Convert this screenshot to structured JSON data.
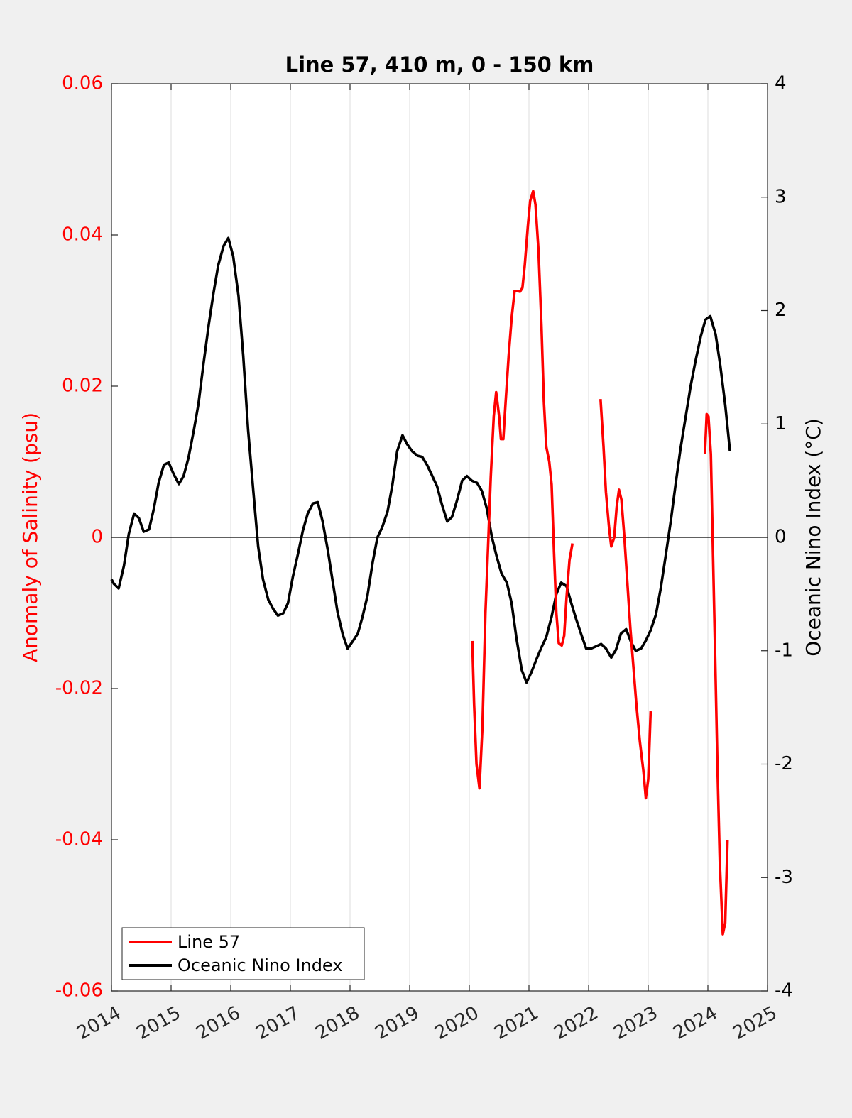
{
  "chart_data": {
    "type": "line",
    "title": "Line 57, 410 m, 0 - 150 km",
    "xlabel": "",
    "xlim": [
      2014,
      2025
    ],
    "x_ticks": [
      2014,
      2015,
      2016,
      2017,
      2018,
      2019,
      2020,
      2021,
      2022,
      2023,
      2024,
      2025
    ],
    "x_tick_labels": [
      "2014",
      "2015",
      "2016",
      "2017",
      "2018",
      "2019",
      "2020",
      "2021",
      "2022",
      "2023",
      "2024",
      "2025"
    ],
    "y_left": {
      "label": "Anomaly of Salinity (psu)",
      "lim": [
        -0.06,
        0.06
      ],
      "ticks": [
        -0.06,
        -0.04,
        -0.02,
        0,
        0.02,
        0.04,
        0.06
      ],
      "tick_labels": [
        "-0.06",
        "-0.04",
        "-0.02",
        "0",
        "0.02",
        "0.04",
        "0.06"
      ],
      "color": "#ff0000"
    },
    "y_right": {
      "label": "Oceanic Nino Index (°C)",
      "lim": [
        -4,
        4
      ],
      "ticks": [
        -4,
        -3,
        -2,
        -1,
        0,
        1,
        2,
        3,
        4
      ],
      "tick_labels": [
        "-4",
        "-3",
        "-2",
        "-1",
        "0",
        "1",
        "2",
        "3",
        "4"
      ],
      "color": "#000000"
    },
    "zero_line": true,
    "grid": "vertical",
    "legend": {
      "location": "bottom-left"
    },
    "series": [
      {
        "name": "Line 57",
        "axis": "left",
        "color": "#ff0000",
        "segments": [
          [
            [
              2020.05,
              -0.0137
            ],
            [
              2020.08,
              -0.022
            ],
            [
              2020.12,
              -0.03
            ],
            [
              2020.17,
              -0.0332
            ],
            [
              2020.22,
              -0.025
            ],
            [
              2020.27,
              -0.01
            ],
            [
              2020.32,
              0.0
            ],
            [
              2020.36,
              0.008
            ],
            [
              2020.41,
              0.016
            ],
            [
              2020.45,
              0.0192
            ],
            [
              2020.5,
              0.016
            ],
            [
              2020.53,
              0.013
            ],
            [
              2020.57,
              0.013
            ],
            [
              2020.61,
              0.018
            ],
            [
              2020.66,
              0.024
            ],
            [
              2020.71,
              0.029
            ],
            [
              2020.76,
              0.0326
            ],
            [
              2020.8,
              0.0326
            ],
            [
              2020.85,
              0.0325
            ],
            [
              2020.89,
              0.033
            ],
            [
              2020.93,
              0.036
            ],
            [
              2020.98,
              0.041
            ],
            [
              2021.02,
              0.0445
            ],
            [
              2021.07,
              0.0458
            ],
            [
              2021.11,
              0.044
            ],
            [
              2021.16,
              0.038
            ],
            [
              2021.21,
              0.028
            ],
            [
              2021.25,
              0.018
            ],
            [
              2021.29,
              0.012
            ],
            [
              2021.34,
              0.01
            ],
            [
              2021.38,
              0.007
            ],
            [
              2021.42,
              -0.002
            ],
            [
              2021.46,
              -0.01
            ],
            [
              2021.5,
              -0.014
            ],
            [
              2021.55,
              -0.0143
            ],
            [
              2021.59,
              -0.013
            ],
            [
              2021.63,
              -0.008
            ],
            [
              2021.68,
              -0.003
            ],
            [
              2021.73,
              -0.0008
            ]
          ],
          [
            [
              2022.2,
              0.0183
            ],
            [
              2022.25,
              0.012
            ],
            [
              2022.29,
              0.006
            ],
            [
              2022.34,
              0.0015
            ],
            [
              2022.38,
              -0.0012
            ],
            [
              2022.43,
              0.0
            ],
            [
              2022.47,
              0.004
            ],
            [
              2022.51,
              0.0063
            ],
            [
              2022.55,
              0.005
            ],
            [
              2022.6,
              0.0
            ],
            [
              2022.65,
              -0.006
            ],
            [
              2022.7,
              -0.012
            ],
            [
              2022.75,
              -0.017
            ],
            [
              2022.8,
              -0.022
            ],
            [
              2022.86,
              -0.027
            ],
            [
              2022.92,
              -0.031
            ],
            [
              2022.96,
              -0.0345
            ],
            [
              2023.0,
              -0.032
            ],
            [
              2023.04,
              -0.023
            ]
          ],
          [
            [
              2023.95,
              0.011
            ],
            [
              2023.98,
              0.0163
            ],
            [
              2024.01,
              0.016
            ],
            [
              2024.05,
              0.011
            ],
            [
              2024.08,
              0.0
            ],
            [
              2024.12,
              -0.015
            ],
            [
              2024.16,
              -0.03
            ],
            [
              2024.2,
              -0.043
            ],
            [
              2024.25,
              -0.0525
            ],
            [
              2024.29,
              -0.051
            ],
            [
              2024.33,
              -0.04
            ]
          ]
        ]
      },
      {
        "name": "Oceanic Nino Index",
        "axis": "right",
        "color": "#000000",
        "segments": [
          [
            [
              2014.0,
              -0.37
            ],
            [
              2014.04,
              -0.41
            ],
            [
              2014.12,
              -0.45
            ],
            [
              2014.21,
              -0.25
            ],
            [
              2014.29,
              0.03
            ],
            [
              2014.38,
              0.21
            ],
            [
              2014.46,
              0.17
            ],
            [
              2014.54,
              0.05
            ],
            [
              2014.63,
              0.07
            ],
            [
              2014.71,
              0.25
            ],
            [
              2014.79,
              0.48
            ],
            [
              2014.88,
              0.64
            ],
            [
              2014.96,
              0.66
            ],
            [
              2015.04,
              0.56
            ],
            [
              2015.13,
              0.47
            ],
            [
              2015.21,
              0.54
            ],
            [
              2015.29,
              0.7
            ],
            [
              2015.38,
              0.94
            ],
            [
              2015.46,
              1.18
            ],
            [
              2015.54,
              1.52
            ],
            [
              2015.63,
              1.87
            ],
            [
              2015.71,
              2.15
            ],
            [
              2015.79,
              2.4
            ],
            [
              2015.88,
              2.57
            ],
            [
              2015.96,
              2.64
            ],
            [
              2016.04,
              2.48
            ],
            [
              2016.13,
              2.13
            ],
            [
              2016.21,
              1.6
            ],
            [
              2016.29,
              0.95
            ],
            [
              2016.38,
              0.4
            ],
            [
              2016.46,
              -0.08
            ],
            [
              2016.54,
              -0.37
            ],
            [
              2016.63,
              -0.55
            ],
            [
              2016.71,
              -0.63
            ],
            [
              2016.79,
              -0.69
            ],
            [
              2016.88,
              -0.67
            ],
            [
              2016.96,
              -0.58
            ],
            [
              2017.04,
              -0.35
            ],
            [
              2017.13,
              -0.14
            ],
            [
              2017.21,
              0.06
            ],
            [
              2017.29,
              0.21
            ],
            [
              2017.38,
              0.3
            ],
            [
              2017.46,
              0.31
            ],
            [
              2017.54,
              0.14
            ],
            [
              2017.63,
              -0.12
            ],
            [
              2017.71,
              -0.39
            ],
            [
              2017.79,
              -0.66
            ],
            [
              2017.88,
              -0.86
            ],
            [
              2017.96,
              -0.98
            ],
            [
              2018.04,
              -0.92
            ],
            [
              2018.13,
              -0.85
            ],
            [
              2018.21,
              -0.7
            ],
            [
              2018.29,
              -0.52
            ],
            [
              2018.38,
              -0.22
            ],
            [
              2018.46,
              0.0
            ],
            [
              2018.54,
              0.09
            ],
            [
              2018.63,
              0.23
            ],
            [
              2018.71,
              0.46
            ],
            [
              2018.79,
              0.76
            ],
            [
              2018.88,
              0.9
            ],
            [
              2018.96,
              0.82
            ],
            [
              2019.04,
              0.76
            ],
            [
              2019.13,
              0.72
            ],
            [
              2019.21,
              0.71
            ],
            [
              2019.29,
              0.64
            ],
            [
              2019.38,
              0.54
            ],
            [
              2019.46,
              0.45
            ],
            [
              2019.54,
              0.29
            ],
            [
              2019.63,
              0.14
            ],
            [
              2019.71,
              0.18
            ],
            [
              2019.79,
              0.32
            ],
            [
              2019.88,
              0.5
            ],
            [
              2019.96,
              0.54
            ],
            [
              2020.04,
              0.5
            ],
            [
              2020.13,
              0.48
            ],
            [
              2020.21,
              0.41
            ],
            [
              2020.29,
              0.26
            ],
            [
              2020.38,
              0.0
            ],
            [
              2020.46,
              -0.17
            ],
            [
              2020.54,
              -0.32
            ],
            [
              2020.63,
              -0.4
            ],
            [
              2020.71,
              -0.58
            ],
            [
              2020.79,
              -0.89
            ],
            [
              2020.88,
              -1.17
            ],
            [
              2020.96,
              -1.28
            ],
            [
              2021.04,
              -1.19
            ],
            [
              2021.13,
              -1.07
            ],
            [
              2021.21,
              -0.97
            ],
            [
              2021.29,
              -0.88
            ],
            [
              2021.38,
              -0.7
            ],
            [
              2021.46,
              -0.5
            ],
            [
              2021.54,
              -0.4
            ],
            [
              2021.63,
              -0.43
            ],
            [
              2021.71,
              -0.58
            ],
            [
              2021.79,
              -0.72
            ],
            [
              2021.88,
              -0.86
            ],
            [
              2021.96,
              -0.98
            ],
            [
              2022.04,
              -0.98
            ],
            [
              2022.13,
              -0.96
            ],
            [
              2022.21,
              -0.94
            ],
            [
              2022.29,
              -0.98
            ],
            [
              2022.38,
              -1.06
            ],
            [
              2022.46,
              -0.99
            ],
            [
              2022.54,
              -0.85
            ],
            [
              2022.63,
              -0.81
            ],
            [
              2022.71,
              -0.92
            ],
            [
              2022.79,
              -1.0
            ],
            [
              2022.88,
              -0.98
            ],
            [
              2022.96,
              -0.91
            ],
            [
              2023.04,
              -0.82
            ],
            [
              2023.13,
              -0.68
            ],
            [
              2023.21,
              -0.45
            ],
            [
              2023.29,
              -0.17
            ],
            [
              2023.38,
              0.15
            ],
            [
              2023.46,
              0.47
            ],
            [
              2023.54,
              0.78
            ],
            [
              2023.63,
              1.07
            ],
            [
              2023.71,
              1.33
            ],
            [
              2023.79,
              1.55
            ],
            [
              2023.88,
              1.77
            ],
            [
              2023.96,
              1.92
            ],
            [
              2024.04,
              1.95
            ],
            [
              2024.13,
              1.79
            ],
            [
              2024.21,
              1.51
            ],
            [
              2024.29,
              1.17
            ],
            [
              2024.37,
              0.76
            ]
          ]
        ]
      }
    ]
  }
}
